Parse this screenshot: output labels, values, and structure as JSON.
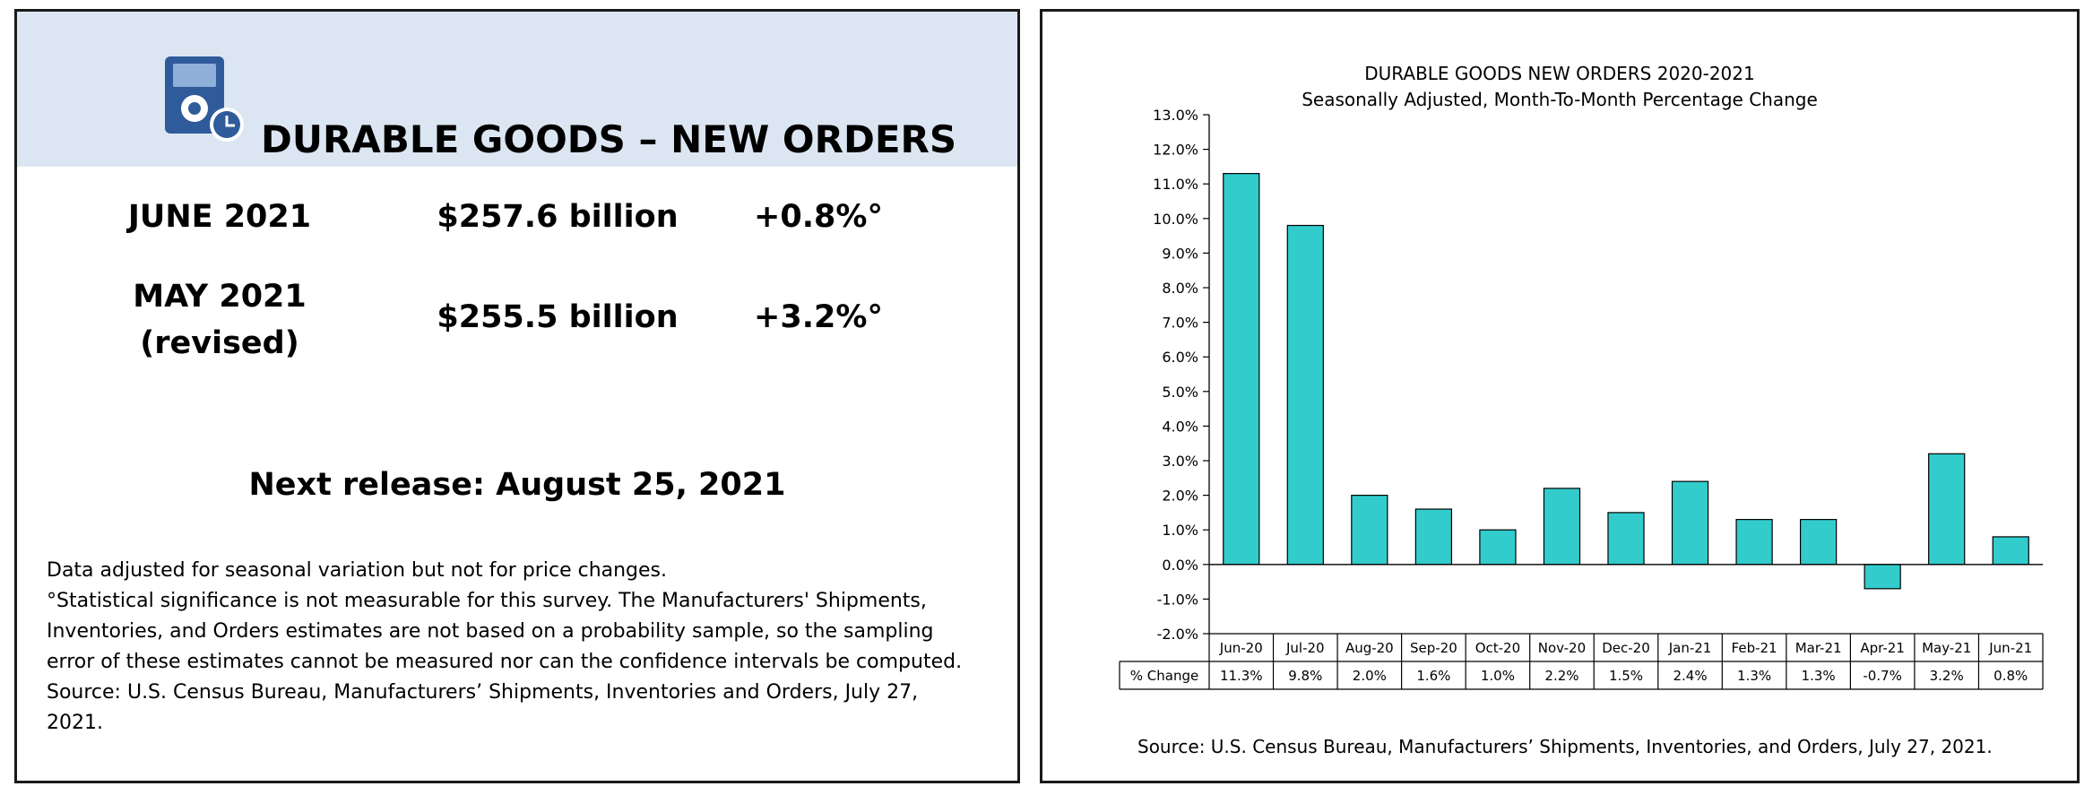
{
  "left": {
    "title": "DURABLE GOODS – NEW ORDERS",
    "icon": "device-clock-icon",
    "june": {
      "label": "JUNE 2021",
      "amount": "$257.6 billion",
      "change": "+0.8%°"
    },
    "may": {
      "label_line1": "MAY 2021",
      "label_line2": "(revised)",
      "amount": "$255.5 billion",
      "change": "+3.2%°"
    },
    "next_release": "Next release: August 25, 2021",
    "notes": [
      "Data adjusted for seasonal variation but not for price changes.",
      "°Statistical significance is not measurable for this survey.  The Manufacturers' Shipments,",
      "Inventories, and Orders estimates are not based on a probability sample, so the sampling",
      "error of these estimates cannot be measured nor can the confidence intervals be computed.",
      "Source: U.S. Census Bureau, Manufacturers’ Shipments, Inventories and Orders, July 27,",
      "2021."
    ],
    "colors": {
      "header_band": "#dce6f2",
      "icon": "#2f5b9a"
    }
  },
  "right": {
    "source": "Source: U.S. Census Bureau, Manufacturers’ Shipments, Inventories, and Orders, July 27, 2021."
  },
  "chart_data": {
    "type": "bar",
    "title": "DURABLE GOODS NEW ORDERS 2020-2021",
    "subtitle": "Seasonally Adjusted,  Month-To-Month Percentage Change",
    "categories": [
      "Jun-20",
      "Jul-20",
      "Aug-20",
      "Sep-20",
      "Oct-20",
      "Nov-20",
      "Dec-20",
      "Jan-21",
      "Feb-21",
      "Mar-21",
      "Apr-21",
      "May-21",
      "Jun-21"
    ],
    "series": [
      {
        "name": "% Change",
        "values": [
          11.3,
          9.8,
          2.0,
          1.6,
          1.0,
          2.2,
          1.5,
          2.4,
          1.3,
          1.3,
          -0.7,
          3.2,
          0.8
        ],
        "labels": [
          "11.3%",
          "9.8%",
          "2.0%",
          "1.6%",
          "1.0%",
          "2.2%",
          "1.5%",
          "2.4%",
          "1.3%",
          "1.3%",
          "-0.7%",
          "3.2%",
          "0.8%"
        ]
      }
    ],
    "ylim": [
      -2.0,
      13.0
    ],
    "yticks": [
      "13.0%",
      "12.0%",
      "11.0%",
      "10.0%",
      "9.0%",
      "8.0%",
      "7.0%",
      "6.0%",
      "5.0%",
      "4.0%",
      "3.0%",
      "2.0%",
      "1.0%",
      "0.0%",
      "-1.0%",
      "-2.0%"
    ],
    "grid": false,
    "data_table": true,
    "bar_color": "#33cccc",
    "bar_outline": "#000000"
  }
}
